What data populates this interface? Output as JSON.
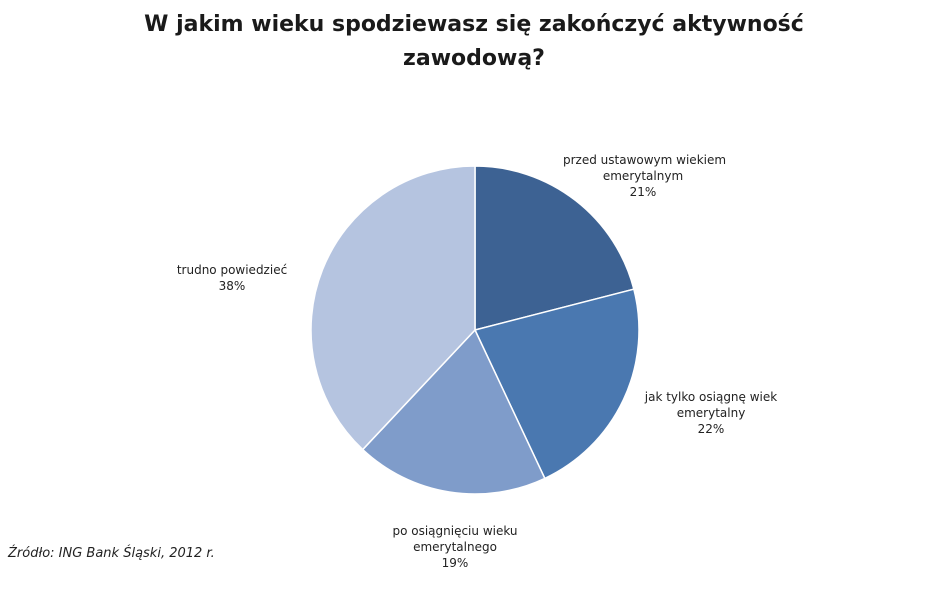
{
  "chart_data": {
    "type": "pie",
    "title_lines": [
      "W jakim wieku spodziewasz się zakończyć aktywność",
      "zawodową?"
    ],
    "slices": [
      {
        "label_lines": [
          "przed ustawowym wiekiem",
          "emerytalnym"
        ],
        "value": 21,
        "value_label": "21%",
        "color": "#3d6293"
      },
      {
        "label_lines": [
          "jak tylko osiągnę wiek",
          "emerytalny"
        ],
        "value": 22,
        "value_label": "22%",
        "color": "#4a78b0"
      },
      {
        "label_lines": [
          "po osiągnięciu wieku",
          "emerytalnego"
        ],
        "value": 19,
        "value_label": "19%",
        "color": "#7f9cca"
      },
      {
        "label_lines": [
          "trudno powiedzieć"
        ],
        "value": 38,
        "value_label": "38%",
        "color": "#b5c4e0"
      }
    ]
  },
  "source": "Źródło: ING Bank Śląski, 2012 r."
}
